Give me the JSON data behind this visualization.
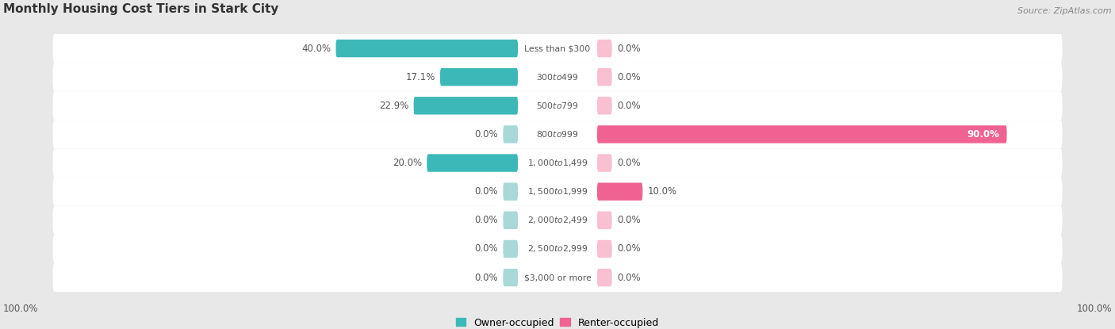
{
  "title": "Monthly Housing Cost Tiers in Stark City",
  "source": "Source: ZipAtlas.com",
  "categories": [
    "Less than $300",
    "$300 to $499",
    "$500 to $799",
    "$800 to $999",
    "$1,000 to $1,499",
    "$1,500 to $1,999",
    "$2,000 to $2,499",
    "$2,500 to $2,999",
    "$3,000 or more"
  ],
  "owner_values": [
    40.0,
    17.1,
    22.9,
    0.0,
    20.0,
    0.0,
    0.0,
    0.0,
    0.0
  ],
  "renter_values": [
    0.0,
    0.0,
    0.0,
    90.0,
    0.0,
    10.0,
    0.0,
    0.0,
    0.0
  ],
  "owner_color": "#3db8b8",
  "renter_color": "#f06292",
  "owner_color_zero": "#a8d8d8",
  "renter_color_zero": "#f8c0d0",
  "bg_color": "#e8e8e8",
  "row_bg_color": "#f2f2f2",
  "label_color": "#555555",
  "title_color": "#333333",
  "source_color": "#888888",
  "max_value": 100.0,
  "left_axis_label": "100.0%",
  "right_axis_label": "100.0%",
  "legend_owner": "Owner-occupied",
  "legend_renter": "Renter-occupied"
}
